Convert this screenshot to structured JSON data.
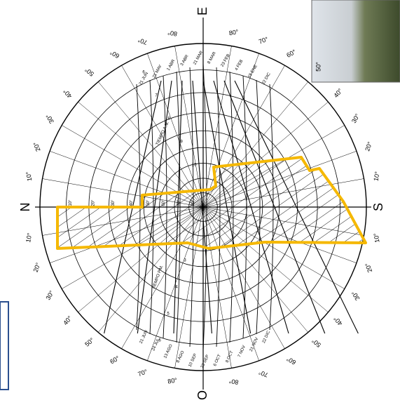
{
  "compass": {
    "north": "N",
    "south": "S",
    "east": "E",
    "west": "O"
  },
  "azimuth_labels": [
    "10°",
    "20°",
    "30°",
    "40°",
    "50°",
    "60°",
    "70°",
    "80°"
  ],
  "altitude_labels": [
    "10°",
    "20°",
    "30°",
    "40°",
    "50°",
    "60°",
    "70°",
    "80°"
  ],
  "date_labels_top": [
    "21 JUN",
    "21 MAY",
    "1 ABR",
    "3 ABR",
    "21 MAR",
    "8 MAR",
    "23 FEB",
    "4 FEB",
    "19 ENE",
    "22 DIC"
  ],
  "date_labels_bottom": [
    "21 JUN",
    "24 JUL",
    "13 AGO",
    "8 AGO",
    "10 SEP",
    "23 SEP",
    "6 OCT",
    "8 OCT",
    "7 NOV",
    "21 NOV",
    "22 DIC"
  ],
  "hour_labels_top": [
    "6",
    "7",
    "8",
    "9",
    "10"
  ],
  "hour_labels_bottom": [
    "6",
    "5",
    "4",
    "3",
    "2"
  ],
  "time_labels": {
    "am": "TIEMPO A.M.",
    "pm": "TIEMPO P.M."
  },
  "photo_label": "50°"
}
